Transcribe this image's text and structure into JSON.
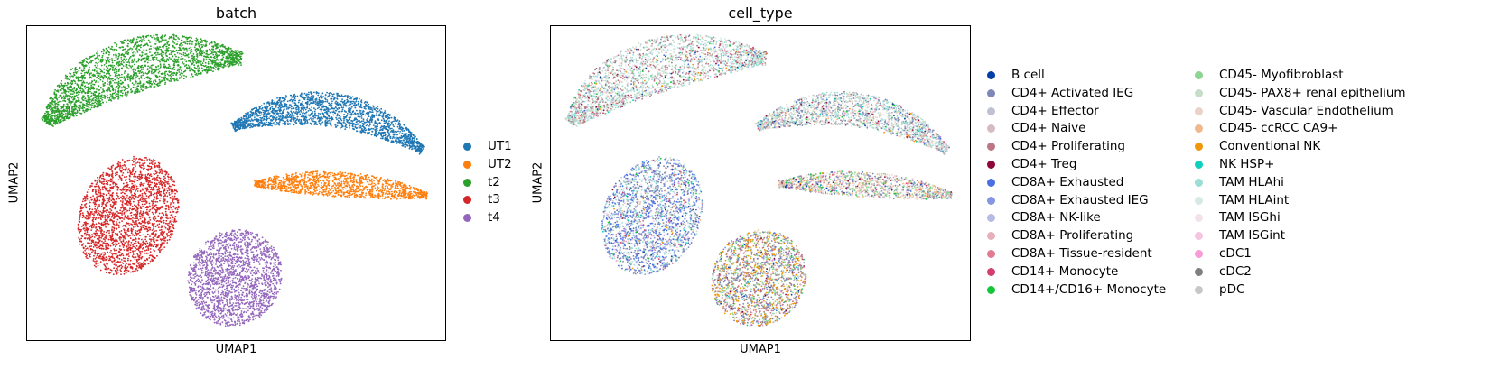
{
  "panels": [
    {
      "title": "batch",
      "xlabel": "UMAP1",
      "ylabel": "UMAP2",
      "legend": [
        {
          "label": "UT1",
          "color": "#1f77b4"
        },
        {
          "label": "UT2",
          "color": "#ff7f0e"
        },
        {
          "label": "t2",
          "color": "#2ca02c"
        },
        {
          "label": "t3",
          "color": "#d62728"
        },
        {
          "label": "t4",
          "color": "#9467bd"
        }
      ]
    },
    {
      "title": "cell_type",
      "xlabel": "UMAP1",
      "ylabel": "UMAP2",
      "legend": [
        {
          "label": "B cell",
          "color": "#023fa5"
        },
        {
          "label": "CD4+ Activated IEG",
          "color": "#7d87b9"
        },
        {
          "label": "CD4+ Effector",
          "color": "#bec1d4"
        },
        {
          "label": "CD4+ Naive",
          "color": "#d6bcc0"
        },
        {
          "label": "CD4+ Proliferating",
          "color": "#bb7784"
        },
        {
          "label": "CD4+ Treg",
          "color": "#8e063b"
        },
        {
          "label": "CD8A+ Exhausted",
          "color": "#4a6fe3"
        },
        {
          "label": "CD8A+ Exhausted IEG",
          "color": "#8595e1"
        },
        {
          "label": "CD8A+ NK-like",
          "color": "#b5bbe3"
        },
        {
          "label": "CD8A+ Proliferating",
          "color": "#e6afb9"
        },
        {
          "label": "CD8A+ Tissue-resident",
          "color": "#e07b91"
        },
        {
          "label": "CD14+ Monocyte",
          "color": "#d33f6a"
        },
        {
          "label": "CD14+/CD16+ Monocyte",
          "color": "#11c638"
        },
        {
          "label": "CD45- Myofibroblast",
          "color": "#8dd593"
        },
        {
          "label": "CD45- PAX8+ renal epithelium",
          "color": "#c6dec7"
        },
        {
          "label": "CD45- Vascular Endothelium",
          "color": "#ead3c6"
        },
        {
          "label": "CD45- ccRCC CA9+",
          "color": "#f0b98d"
        },
        {
          "label": "Conventional NK",
          "color": "#ef9708"
        },
        {
          "label": "NK HSP+",
          "color": "#0fcfc0"
        },
        {
          "label": "TAM HLAhi",
          "color": "#9cded6"
        },
        {
          "label": "TAM HLAint",
          "color": "#d5eae7"
        },
        {
          "label": "TAM ISGhi",
          "color": "#f3e1eb"
        },
        {
          "label": "TAM ISGint",
          "color": "#f6c4e1"
        },
        {
          "label": "cDC1",
          "color": "#f79cd4"
        },
        {
          "label": "cDC2",
          "color": "#7f7f7f"
        },
        {
          "label": "pDC",
          "color": "#c7c7c7"
        }
      ]
    }
  ],
  "chart_data": [
    {
      "type": "scatter",
      "title": "batch",
      "xlabel": "UMAP1",
      "ylabel": "UMAP2",
      "grid": false,
      "legend_position": "right",
      "clusters": [
        {
          "name": "t2",
          "color": "#2ca02c",
          "shape": "elongated arc",
          "location": "upper-left"
        },
        {
          "name": "UT1",
          "color": "#1f77b4",
          "shape": "elongated arc",
          "location": "upper-right"
        },
        {
          "name": "UT2",
          "color": "#ff7f0e",
          "shape": "elongated arc",
          "location": "middle-right"
        },
        {
          "name": "t3",
          "color": "#d62728",
          "shape": "oval",
          "location": "lower-left"
        },
        {
          "name": "t4",
          "color": "#9467bd",
          "shape": "oval",
          "location": "bottom-center"
        }
      ]
    },
    {
      "type": "scatter",
      "title": "cell_type",
      "xlabel": "UMAP1",
      "ylabel": "UMAP2",
      "grid": false,
      "legend_position": "right",
      "clusters": [
        {
          "location": "upper-left",
          "dominant_colors": [
            "#c6dec7",
            "#9cded6",
            "#d5eae7",
            "#bb7784"
          ]
        },
        {
          "location": "upper-right",
          "dominant_colors": [
            "#c6dec7",
            "#9cded6",
            "#7d87b9",
            "#ead3c6"
          ]
        },
        {
          "location": "middle-right",
          "dominant_colors": [
            "#f0b98d",
            "#8dd593",
            "#ead3c6",
            "#7d87b9"
          ]
        },
        {
          "location": "lower-left",
          "dominant_colors": [
            "#7d87b9",
            "#4a6fe3",
            "#8595e1",
            "#9cded6"
          ]
        },
        {
          "location": "bottom-center",
          "dominant_colors": [
            "#ef9708",
            "#bb7784",
            "#8dd593",
            "#7d87b9"
          ]
        }
      ]
    }
  ]
}
